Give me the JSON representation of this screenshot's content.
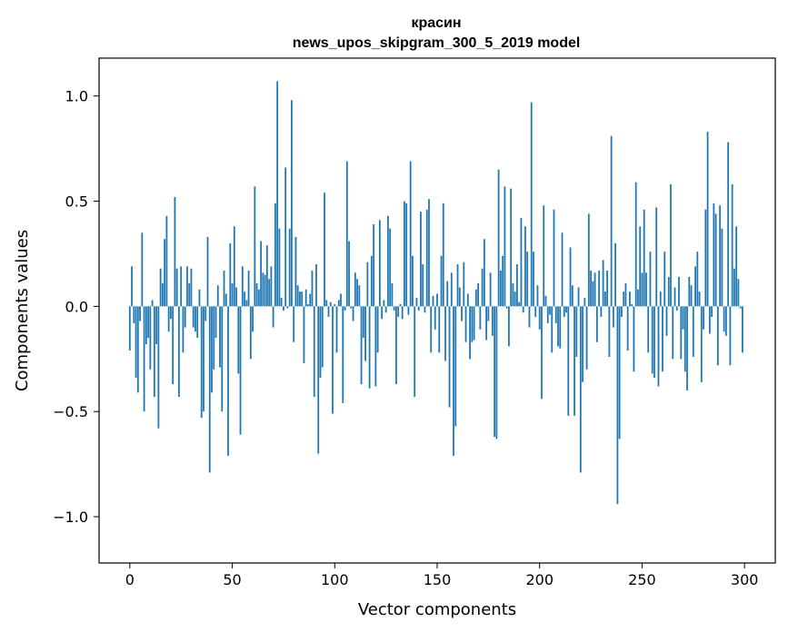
{
  "chart_data": {
    "type": "bar",
    "title_line1": "красин",
    "title_line2": "news_upos_skipgram_300_5_2019 model",
    "xlabel": "Vector components",
    "ylabel": "Components values",
    "xlim": [
      -15,
      315
    ],
    "ylim": [
      -1.22,
      1.18
    ],
    "xticks": [
      0,
      50,
      100,
      150,
      200,
      250,
      300
    ],
    "yticks": [
      -1.0,
      -0.5,
      0.0,
      0.5,
      1.0
    ],
    "xtick_labels": [
      "0",
      "50",
      "100",
      "150",
      "200",
      "250",
      "300"
    ],
    "ytick_labels": [
      "−1.0",
      "−0.5",
      "0.0",
      "0.5",
      "1.0"
    ],
    "bar_color": "#1f77b4",
    "grid": false,
    "values": [
      -0.21,
      0.19,
      -0.08,
      -0.34,
      -0.41,
      -0.07,
      0.35,
      -0.5,
      -0.18,
      -0.15,
      -0.3,
      0.03,
      -0.43,
      -0.18,
      -0.58,
      0.18,
      0.11,
      0.32,
      0.43,
      -0.12,
      -0.06,
      -0.37,
      0.52,
      0.18,
      -0.43,
      0.19,
      -0.22,
      -0.1,
      0.19,
      0.11,
      0.18,
      -0.1,
      -0.12,
      -0.15,
      0.08,
      -0.53,
      -0.5,
      -0.07,
      0.33,
      -0.79,
      -0.41,
      -0.3,
      -0.15,
      0.1,
      -0.29,
      -0.5,
      0.17,
      0.06,
      -0.71,
      0.3,
      0.11,
      0.38,
      0.09,
      -0.32,
      -0.61,
      0.19,
      0.07,
      0.03,
      0.17,
      -0.25,
      -0.12,
      0.57,
      0.11,
      0.08,
      0.31,
      0.16,
      0.15,
      0.29,
      0.13,
      0.19,
      -0.1,
      0.49,
      1.07,
      0.37,
      0.04,
      -0.02,
      0.66,
      -0.01,
      0.37,
      0.98,
      -0.17,
      0.33,
      0.1,
      0.07,
      0.07,
      -0.27,
      0.08,
      0.01,
      0.06,
      0.17,
      -0.43,
      0.2,
      -0.7,
      -0.34,
      -0.29,
      0.54,
      0.03,
      -0.05,
      0.02,
      -0.51,
      0.01,
      -0.22,
      0.03,
      0.06,
      -0.46,
      -0.02,
      0.69,
      0.31,
      -0.01,
      -0.07,
      0.16,
      0.13,
      0.1,
      -0.37,
      -0.15,
      -0.26,
      0.21,
      -0.39,
      0.24,
      0.39,
      -0.38,
      -0.22,
      0.41,
      -0.06,
      0.03,
      -0.03,
      0.43,
      0.37,
      0.11,
      -0.02,
      -0.37,
      -0.05,
      0.01,
      -0.06,
      0.5,
      0.49,
      -0.04,
      0.69,
      0.24,
      -0.43,
      0.04,
      -0.02,
      0.45,
      0.2,
      -0.03,
      0.46,
      0.51,
      -0.22,
      0.05,
      -0.11,
      0.06,
      -0.22,
      0.24,
      0.49,
      -0.26,
      0.12,
      -0.48,
      0.16,
      -0.71,
      -0.57,
      0.2,
      0.09,
      -0.07,
      0.21,
      -0.17,
      0.06,
      -0.25,
      -0.17,
      -0.16,
      0.08,
      0.11,
      -0.11,
      0.18,
      0.32,
      -0.16,
      -0.07,
      0.16,
      -0.14,
      -0.62,
      -0.63,
      0.65,
      0.17,
      0.24,
      0.57,
      -0.01,
      -0.19,
      0.56,
      0.11,
      0.07,
      0.2,
      0.02,
      0.42,
      -0.03,
      0.38,
      0.26,
      -0.1,
      0.97,
      0.26,
      -0.05,
      0.1,
      -0.11,
      -0.44,
      0.48,
      0.05,
      -0.08,
      -0.04,
      -0.22,
      0.46,
      -0.08,
      -0.19,
      -0.2,
      0.35,
      -0.05,
      -0.03,
      -0.52,
      0.28,
      0.1,
      -0.52,
      -0.24,
      0.09,
      -0.79,
      -0.36,
      0.04,
      -0.3,
      0.44,
      0.17,
      0.12,
      0.16,
      -0.17,
      0.17,
      -0.05,
      0.22,
      0.07,
      0.17,
      -0.24,
      0.81,
      -0.1,
      0.3,
      -0.94,
      -0.63,
      -0.05,
      0.07,
      0.11,
      -0.21,
      0.07,
      0.01,
      -0.31,
      0.59,
      0.08,
      0.38,
      0.16,
      0.46,
      0.16,
      -0.22,
      0.26,
      -0.32,
      -0.34,
      0.47,
      -0.38,
      0.07,
      -0.31,
      0.26,
      -0.14,
      0.14,
      0.58,
      -0.25,
      0.09,
      -0.02,
      0.14,
      -0.25,
      -0.11,
      -0.31,
      -0.4,
      0.14,
      0.1,
      -0.24,
      0.19,
      0.26,
      0.07,
      -0.36,
      -0.11,
      0.46,
      0.83,
      -0.13,
      -0.05,
      0.49,
      0.44,
      -0.28,
      0.48,
      0.37,
      -0.12,
      -0.14,
      0.78,
      -0.28,
      0.58,
      0.18,
      0.38,
      0.13,
      -0.01,
      -0.22
    ]
  }
}
